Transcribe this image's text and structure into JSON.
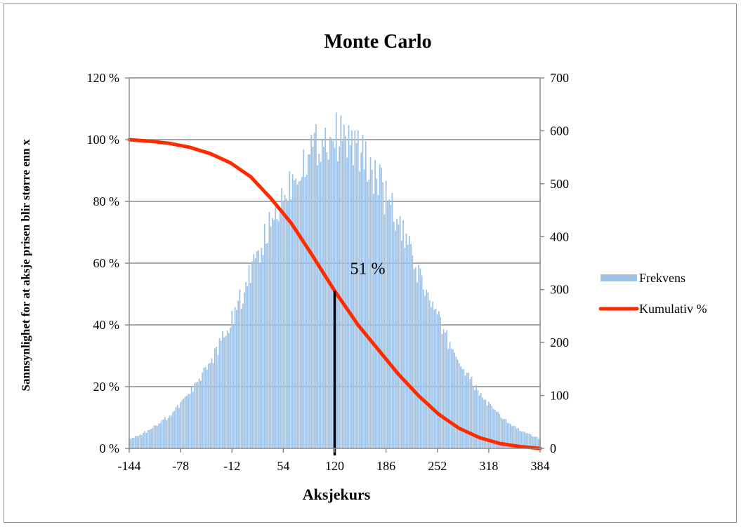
{
  "chart_data": {
    "type": "bar",
    "title": "Monte Carlo",
    "xlabel": "Aksjekurs",
    "ylabel_left": "Sannsynlighet for at aksje prisen blir større enn x",
    "ylim_left": [
      0,
      1.2
    ],
    "ylim_right": [
      0,
      700
    ],
    "y_ticks_left": [
      "0 %",
      "20 %",
      "40 %",
      "60 %",
      "80 %",
      "100 %",
      "120 %"
    ],
    "y_ticks_right": [
      "0",
      "100",
      "200",
      "300",
      "400",
      "500",
      "600",
      "700"
    ],
    "x_tick_labels": [
      "-144",
      "-78",
      "-12",
      "54",
      "120",
      "186",
      "252",
      "318",
      "384"
    ],
    "xlim": [
      -144,
      384
    ],
    "grid": true,
    "legend_position": "right",
    "colors": {
      "frequency": "#9fc3e7",
      "cumulative": "#ff2a00",
      "marker": "#000000",
      "grid": "#8c8c8c"
    },
    "series": [
      {
        "name": "Frekvens",
        "type": "bar",
        "axis": "right",
        "mean": 120,
        "sd": 100,
        "peak": 590,
        "bin_width": 2,
        "x_range": [
          -144,
          384
        ]
      },
      {
        "name": "Kumulativ %",
        "type": "line",
        "axis": "left",
        "x": [
          -144,
          -118,
          -92,
          -66,
          -40,
          -14,
          12,
          38,
          64,
          90,
          120,
          150,
          176,
          202,
          228,
          254,
          280,
          306,
          332,
          358,
          384
        ],
        "y": [
          1.0,
          0.995,
          0.988,
          0.975,
          0.955,
          0.925,
          0.88,
          0.81,
          0.73,
          0.63,
          0.51,
          0.4,
          0.32,
          0.24,
          0.17,
          0.11,
          0.065,
          0.035,
          0.016,
          0.006,
          0.0
        ]
      }
    ],
    "annotations": [
      {
        "text": "51 %",
        "x": 120,
        "y": 0.51
      }
    ]
  }
}
